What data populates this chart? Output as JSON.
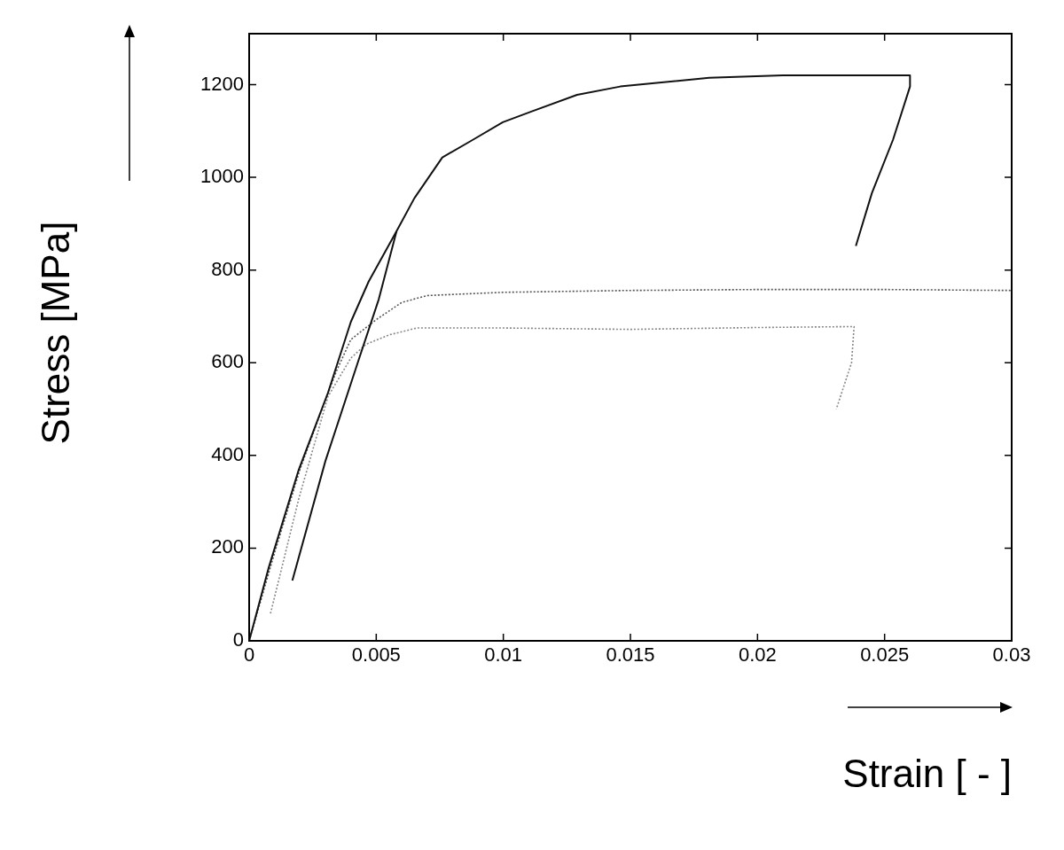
{
  "chart_data": {
    "type": "line",
    "xlabel": "Strain [ - ]",
    "ylabel": "Stress [MPa]",
    "xlim": [
      0,
      0.03
    ],
    "xticks": [
      0,
      0.005,
      0.01,
      0.015,
      0.02,
      0.025,
      0.03
    ],
    "ylim": [
      0,
      1310
    ],
    "yticks": [
      0,
      200,
      400,
      600,
      800,
      1000,
      1200
    ],
    "grid": false,
    "legend": false,
    "marker": "none",
    "series": [
      {
        "color": "#111111",
        "line_style": "solid",
        "x": [
          0,
          0.00077,
          0.00195,
          0.0031,
          0.004,
          0.0047,
          0.0058,
          0.0065,
          0.0076,
          0.0088,
          0.00998,
          0.0111,
          0.0129,
          0.0146,
          0.0181,
          0.021,
          0.0235,
          0.026,
          0.026,
          0.02533,
          0.0245,
          0.02387
        ],
        "values": [
          0,
          158,
          369,
          535,
          688,
          775,
          884,
          955,
          1043,
          1081,
          1119,
          1142,
          1178,
          1196,
          1215,
          1220,
          1220,
          1220,
          1196,
          1081,
          966,
          852
        ]
      },
      {
        "color": "#111111",
        "line_style": "solid",
        "x": [
          0.0017,
          0.003,
          0.00426,
          0.0051,
          0.0058
        ],
        "values": [
          130,
          388,
          598,
          737,
          884
        ]
      },
      {
        "color": "#555555",
        "line_style": "dotted",
        "x": [
          0,
          0.001,
          0.002,
          0.003,
          0.00345,
          0.004,
          0.005,
          0.006,
          0.007,
          0.01,
          0.015,
          0.02,
          0.025,
          0.03
        ],
        "values": [
          0,
          190,
          370,
          520,
          584,
          650,
          693,
          730,
          745,
          752,
          756,
          758,
          758,
          756
        ]
      },
      {
        "color": "#888888",
        "line_style": "dotted",
        "x": [
          0.00084,
          0.00195,
          0.0031,
          0.004,
          0.0046,
          0.0055,
          0.0066,
          0.01,
          0.015,
          0.02,
          0.0238,
          0.0237,
          0.0231
        ],
        "values": [
          59,
          306,
          527,
          610,
          640,
          660,
          675,
          675,
          672,
          676,
          678,
          600,
          500
        ]
      }
    ]
  }
}
